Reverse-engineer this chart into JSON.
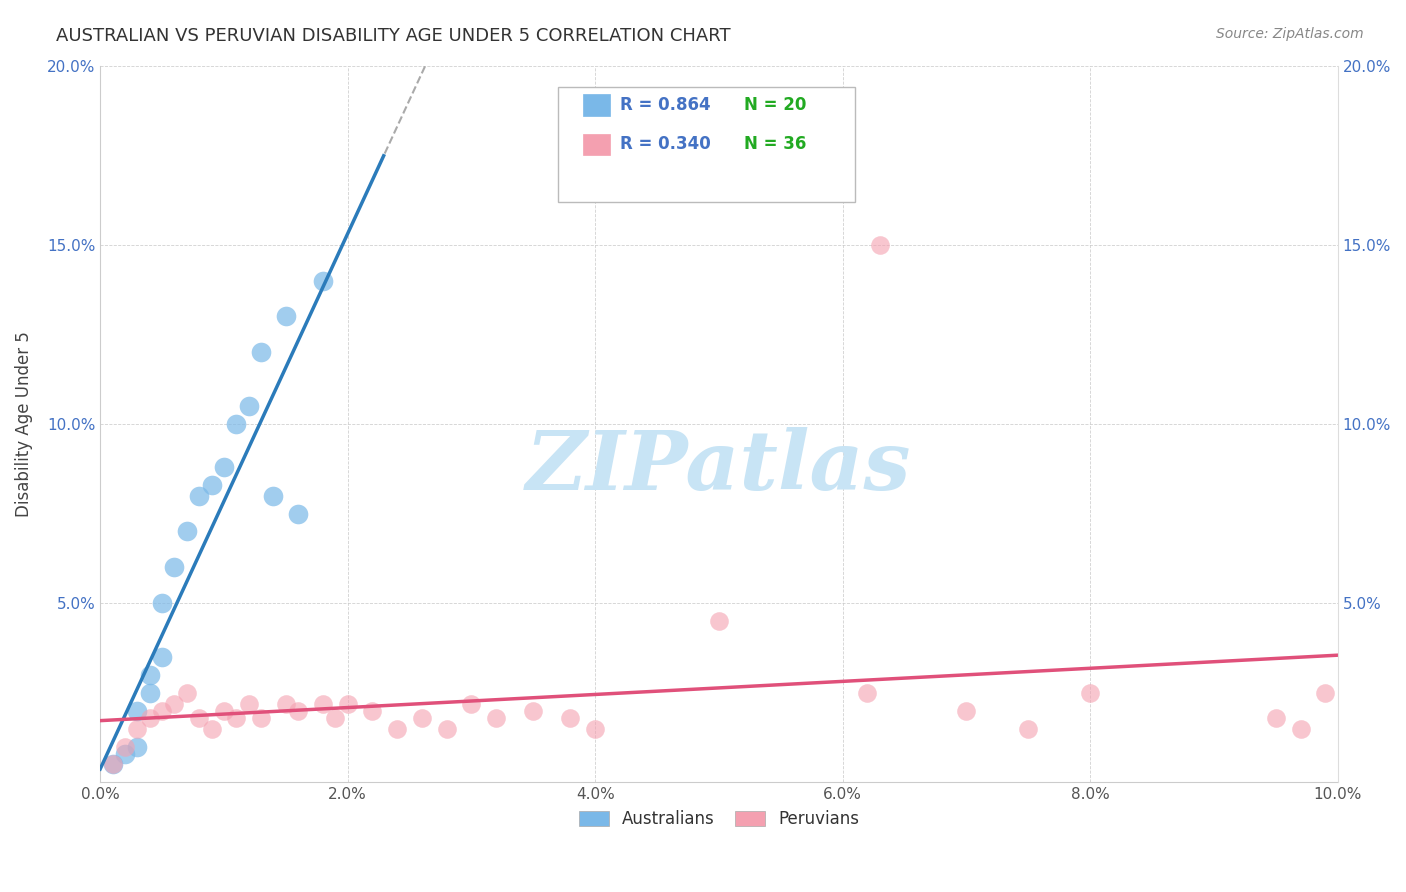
{
  "title": "AUSTRALIAN VS PERUVIAN DISABILITY AGE UNDER 5 CORRELATION CHART",
  "source": "Source: ZipAtlas.com",
  "ylabel": "Disability Age Under 5",
  "xlim": [
    0,
    0.1
  ],
  "ylim": [
    0,
    0.2
  ],
  "x_ticks": [
    0.0,
    0.02,
    0.04,
    0.06,
    0.08,
    0.1
  ],
  "y_ticks": [
    0.0,
    0.05,
    0.1,
    0.15,
    0.2
  ],
  "legend_r_aus": "R = 0.864",
  "legend_n_aus": "N = 20",
  "legend_r_per": "R = 0.340",
  "legend_n_per": "N = 36",
  "australian_color": "#7ab8e8",
  "peruvian_color": "#f4a0b0",
  "australian_line_color": "#2b7bba",
  "peruvian_line_color": "#e0507a",
  "background_color": "#ffffff",
  "watermark_text": "ZIPatlas",
  "watermark_color": "#c8e4f5",
  "r_color": "#4472c4",
  "n_color": "#22aa22",
  "aus_x": [
    0.001,
    0.002,
    0.003,
    0.004,
    0.005,
    0.006,
    0.007,
    0.008,
    0.009,
    0.01,
    0.011,
    0.012,
    0.013,
    0.014,
    0.015,
    0.016,
    0.017,
    0.018,
    0.019,
    0.02
  ],
  "aus_y": [
    0.003,
    0.006,
    0.01,
    0.02,
    0.025,
    0.03,
    0.04,
    0.055,
    0.06,
    0.07,
    0.08,
    0.09,
    0.1,
    0.11,
    0.12,
    0.13,
    0.095,
    0.08,
    0.135,
    0.14
  ],
  "per_x": [
    0.001,
    0.002,
    0.003,
    0.004,
    0.005,
    0.006,
    0.007,
    0.008,
    0.009,
    0.01,
    0.011,
    0.012,
    0.014,
    0.015,
    0.016,
    0.018,
    0.02,
    0.022,
    0.024,
    0.026,
    0.028,
    0.03,
    0.032,
    0.034,
    0.038,
    0.04,
    0.048,
    0.05,
    0.06,
    0.062,
    0.07,
    0.072,
    0.08,
    0.095,
    0.097,
    0.099
  ],
  "per_y": [
    0.005,
    0.012,
    0.018,
    0.022,
    0.025,
    0.02,
    0.028,
    0.022,
    0.018,
    0.025,
    0.02,
    0.028,
    0.02,
    0.025,
    0.022,
    0.025,
    0.02,
    0.025,
    0.018,
    0.022,
    0.018,
    0.025,
    0.02,
    0.025,
    0.028,
    0.02,
    0.022,
    0.045,
    0.025,
    0.15,
    0.02,
    0.025,
    0.025,
    0.02,
    0.018,
    0.025
  ]
}
